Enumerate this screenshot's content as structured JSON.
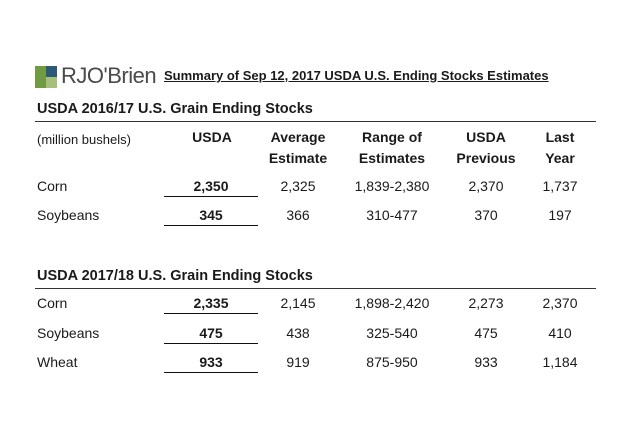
{
  "logo": {
    "text": "RJO'Brien"
  },
  "title": "Summary of Sep 12, 2017 USDA U.S. Ending Stocks Estimates",
  "units": "(million bushels)",
  "columns": [
    [
      "",
      "USDA"
    ],
    [
      "Average",
      "Estimate"
    ],
    [
      "Range of",
      "Estimates"
    ],
    [
      "USDA",
      "Previous"
    ],
    [
      "Last",
      "Year"
    ]
  ],
  "sections": [
    {
      "title": "USDA 2016/17 U.S. Grain Ending Stocks",
      "rows": [
        {
          "name": "Corn",
          "usda": "2,350",
          "avg": "2,325",
          "range": "1,839-2,380",
          "prev": "2,370",
          "last": "1,737"
        },
        {
          "name": "Soybeans",
          "usda": "345",
          "avg": "366",
          "range": "310-477",
          "prev": "370",
          "last": "197"
        }
      ]
    },
    {
      "title": "USDA 2017/18 U.S. Grain Ending Stocks",
      "rows": [
        {
          "name": "Corn",
          "usda": "2,335",
          "avg": "2,145",
          "range": "1,898-2,420",
          "prev": "2,273",
          "last": "2,370"
        },
        {
          "name": "Soybeans",
          "usda": "475",
          "avg": "438",
          "range": "325-540",
          "prev": "475",
          "last": "410"
        },
        {
          "name": "Wheat",
          "usda": "933",
          "avg": "919",
          "range": "875-950",
          "prev": "933",
          "last": "1,184"
        }
      ]
    }
  ]
}
